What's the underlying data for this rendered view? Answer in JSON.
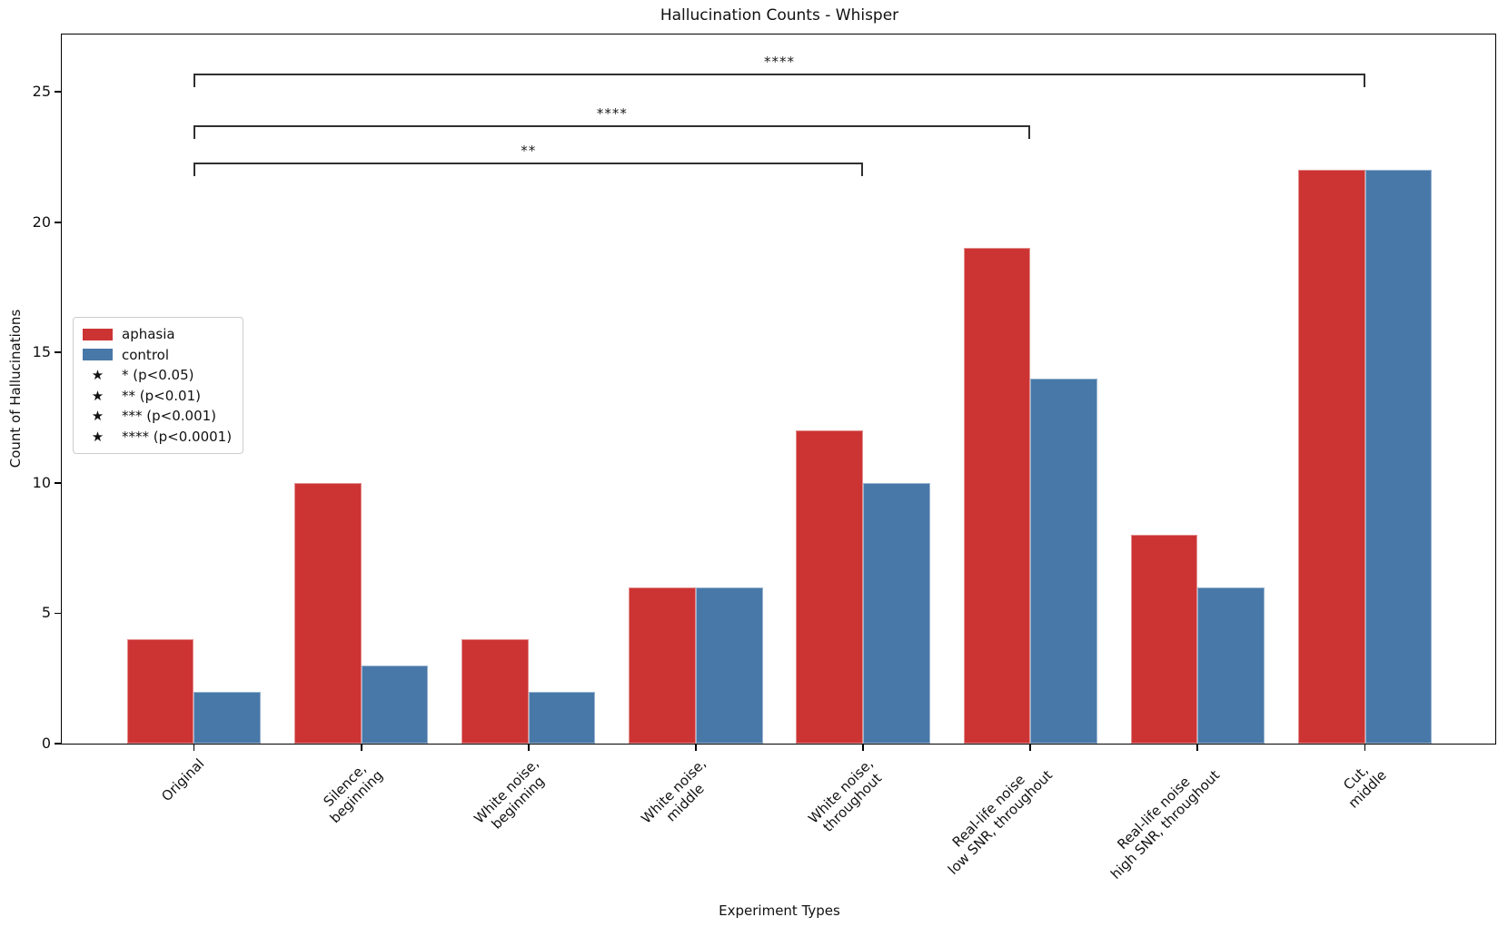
{
  "title": "Hallucination Counts - Whisper",
  "chart_data": {
    "type": "bar",
    "title": "Hallucination Counts - Whisper",
    "xlabel": "Experiment Types",
    "ylabel": "Count of Hallucinations",
    "categories": [
      "Original",
      "Silence,\nbeginning",
      "White noise,\nbeginning",
      "White noise,\nmiddle",
      "White noise,\nthroughout",
      "Real-life noise\nlow SNR, throughout",
      "Real-life noise\nhigh SNR, throughout",
      "Cut,\nmiddle"
    ],
    "series": [
      {
        "name": "aphasia",
        "color": "#cc3433",
        "values": [
          4,
          10,
          4,
          6,
          12,
          19,
          8,
          22
        ]
      },
      {
        "name": "control",
        "color": "#4878a8",
        "values": [
          2,
          3,
          2,
          6,
          10,
          14,
          6,
          22
        ]
      }
    ],
    "yticks": [
      0,
      5,
      10,
      15,
      20,
      25
    ],
    "ylim": [
      0,
      27.2
    ],
    "grid": false,
    "legend_position": "upper-left-inside",
    "significance_brackets": [
      {
        "from_category": 0,
        "to_category": 4,
        "label": "**",
        "y": 22.3
      },
      {
        "from_category": 0,
        "to_category": 5,
        "label": "****",
        "y": 23.7
      },
      {
        "from_category": 0,
        "to_category": 7,
        "label": "****",
        "y": 25.7
      }
    ]
  },
  "legend": {
    "items": [
      {
        "kind": "patch",
        "color": "#cc3433",
        "label": "aphasia"
      },
      {
        "kind": "patch",
        "color": "#4878a8",
        "label": "control"
      },
      {
        "kind": "star",
        "glyph": "★",
        "label": "* (p<0.05)"
      },
      {
        "kind": "star",
        "glyph": "★",
        "label": "** (p<0.01)"
      },
      {
        "kind": "star",
        "glyph": "★",
        "label": "*** (p<0.001)"
      },
      {
        "kind": "star",
        "glyph": "★",
        "label": "**** (p<0.0001)"
      }
    ]
  }
}
